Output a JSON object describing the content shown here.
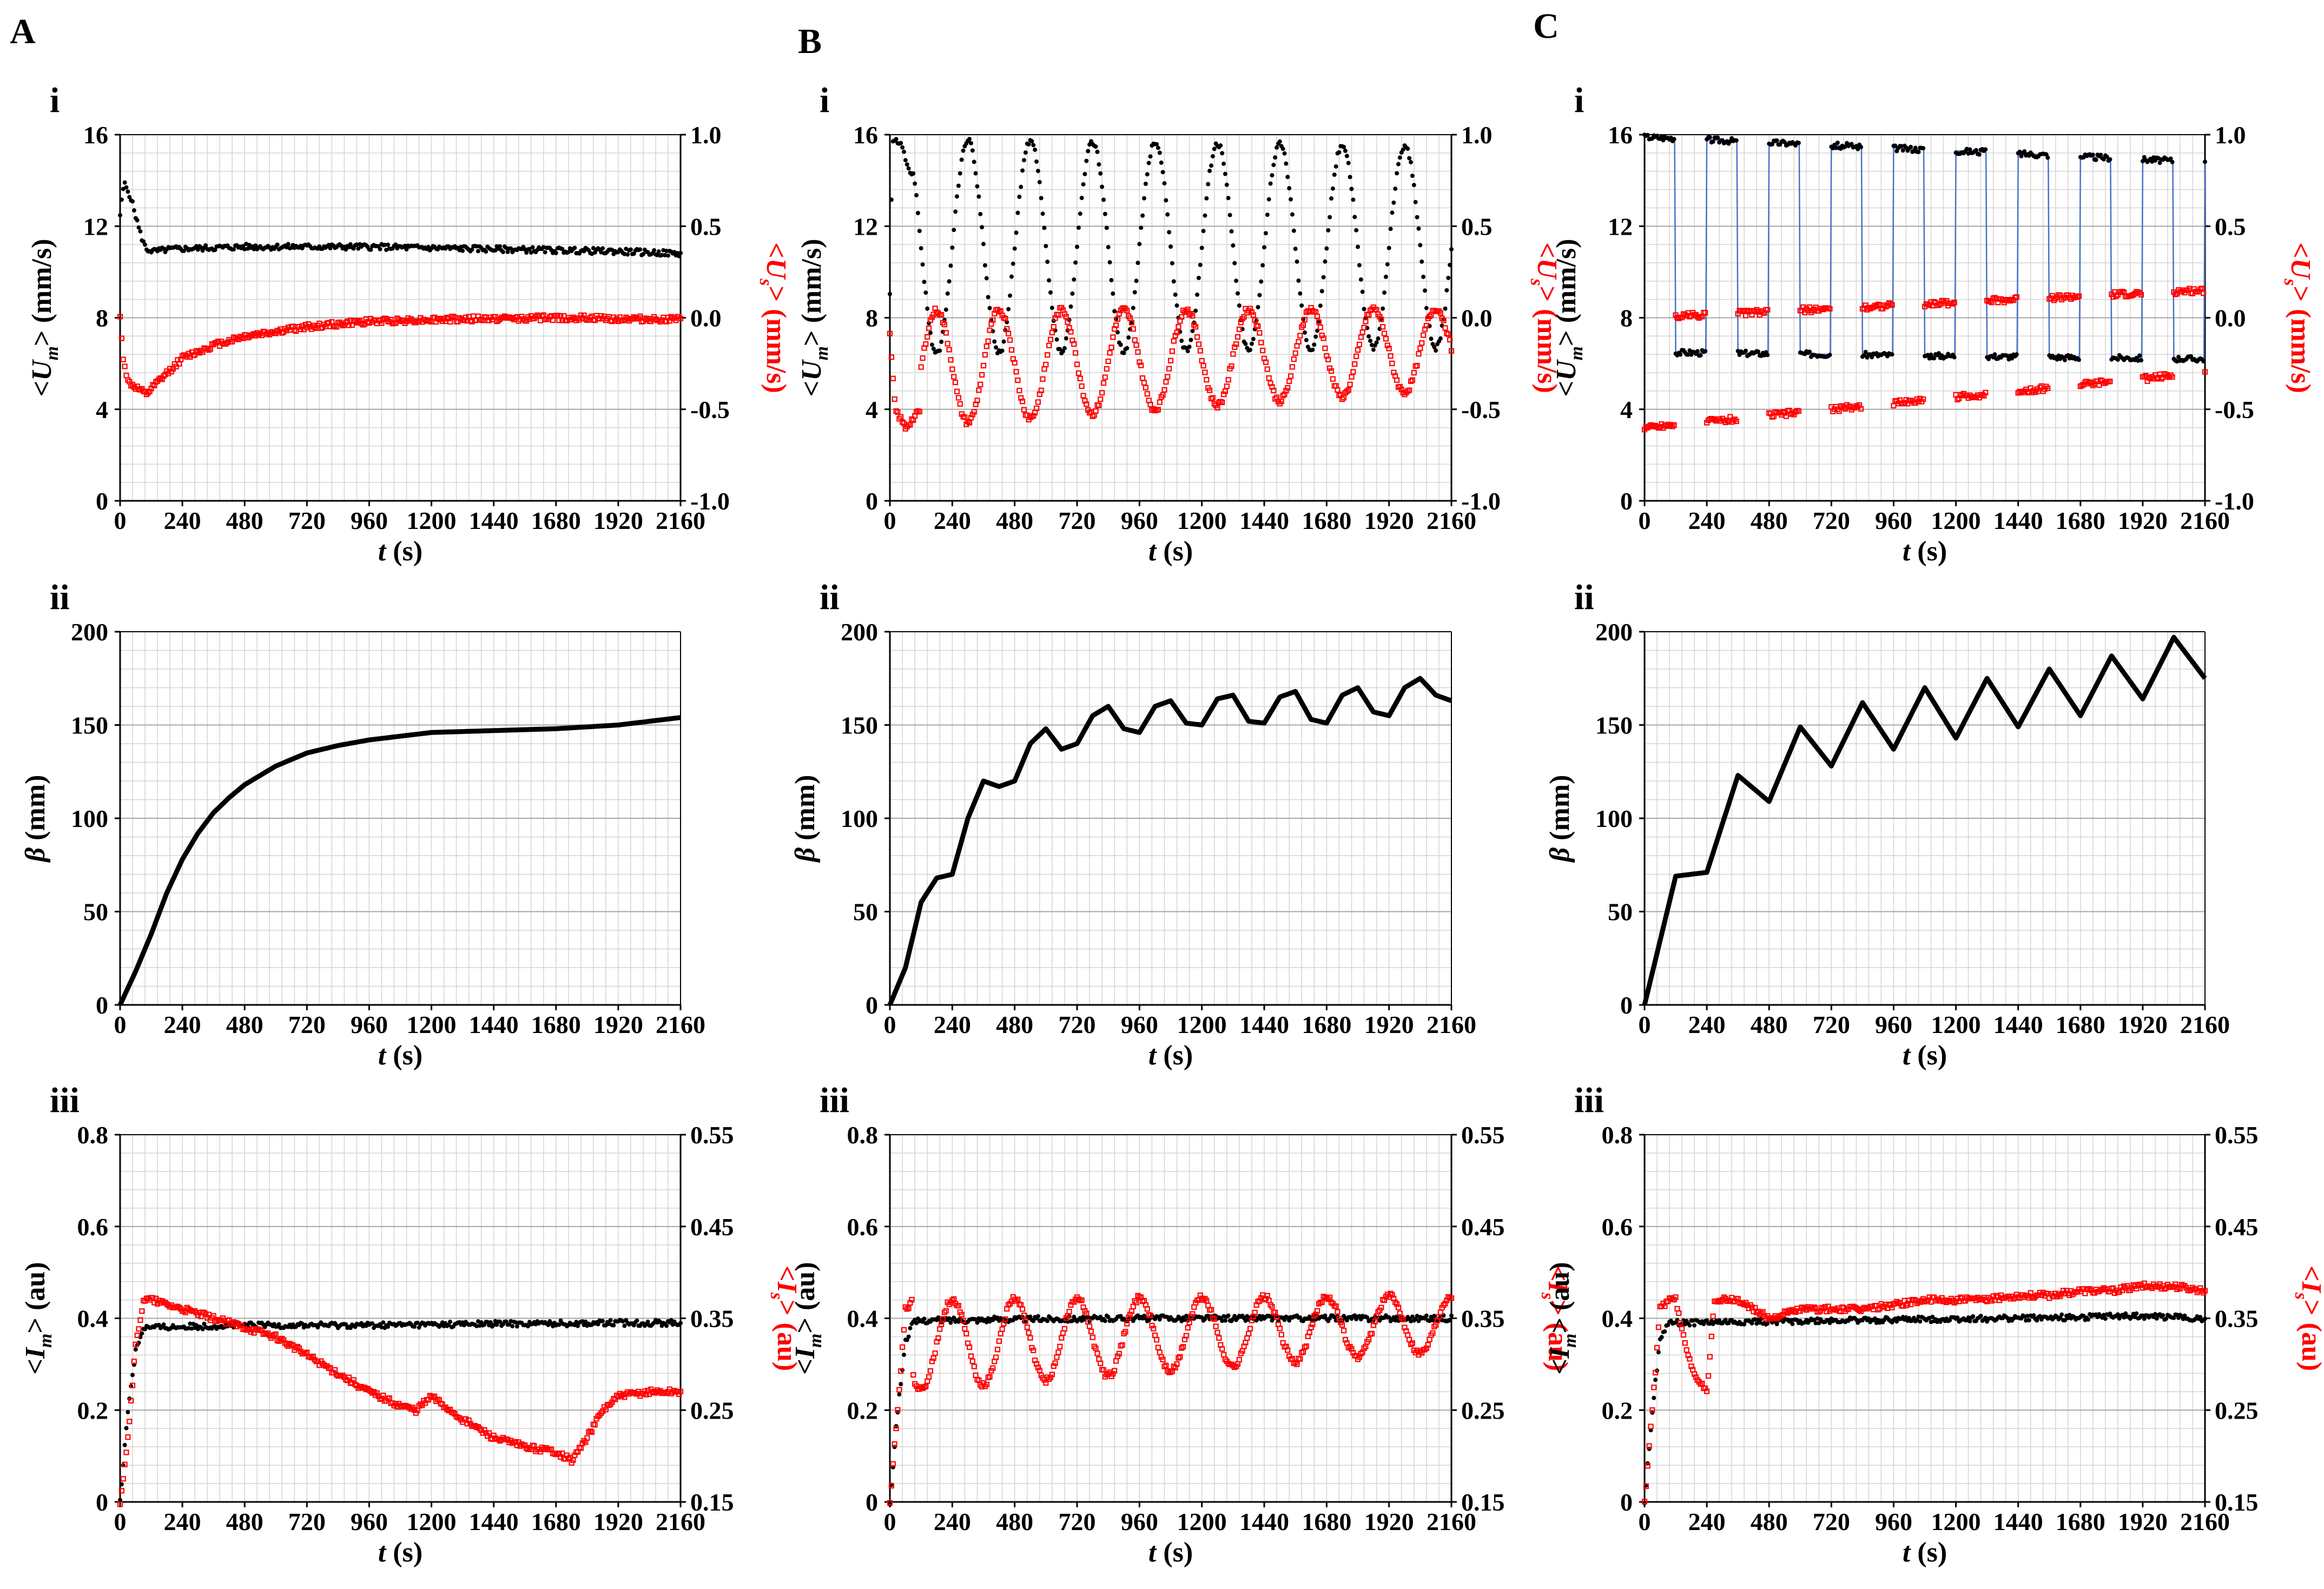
{
  "colors": {
    "black": "#000000",
    "red": "#ff0000",
    "blue": "#4472c4",
    "grid": "#d4d4d4",
    "grid_major": "#a6a6a6"
  },
  "columns": [
    {
      "label": "A",
      "rows": [
        "i",
        "ii",
        "iii"
      ]
    },
    {
      "label": "B",
      "rows": [
        "i",
        "ii",
        "iii"
      ]
    },
    {
      "label": "C",
      "rows": [
        "i",
        "ii",
        "iii"
      ]
    }
  ],
  "axis_text": {
    "x_label_main": "t",
    "x_label_unit": " (s)",
    "um": {
      "pre": "<U",
      "sub": "m",
      "post": "> (mm/s)"
    },
    "us": {
      "pre": "<U",
      "sub": "s",
      "post": "> (mm/s)"
    },
    "beta": {
      "main": "β",
      "unit": " (mm)"
    },
    "im": {
      "pre": "<I",
      "sub": "m",
      "post": "> (au)"
    },
    "is": {
      "pre": "<I",
      "sub": "s",
      "post": "> (au)"
    }
  },
  "chart_data": [
    {
      "panel": "A-i",
      "type": "scatter",
      "xlabel": "t (s)",
      "ylabel": "<Um> (mm/s)",
      "y2label": "<Us> (mm/s)",
      "xlim": [
        0,
        2160
      ],
      "ylim": [
        0,
        16
      ],
      "y2lim": [
        -1.0,
        1.0
      ],
      "xticks": [
        "0",
        "240",
        "480",
        "720",
        "960",
        "1200",
        "1440",
        "1680",
        "1920",
        "2160"
      ],
      "yticks": [
        "0",
        "4",
        "8",
        "12",
        "16"
      ],
      "y2ticks": [
        "-1.0",
        "-0.5",
        "0.0",
        "0.5",
        "1.0"
      ],
      "series": [
        {
          "name": "<Um>",
          "axis": "left",
          "color": "#000000",
          "mode": "constant",
          "x": [
            0,
            15,
            40,
            80,
            100,
            130,
            200,
            480,
            960,
            1440,
            1920,
            2160
          ],
          "y": [
            12.5,
            13.9,
            13.3,
            11.6,
            11.0,
            10.9,
            11.0,
            11.1,
            11.1,
            11.0,
            10.9,
            10.8
          ]
        },
        {
          "name": "<Us>",
          "axis": "right",
          "color": "#ff0000",
          "mode": "constant",
          "x": [
            0,
            10,
            30,
            60,
            100,
            140,
            240,
            360,
            480,
            720,
            960,
            1200,
            1680,
            2160
          ],
          "y": [
            0.0,
            -0.2,
            -0.35,
            -0.38,
            -0.42,
            -0.36,
            -0.22,
            -0.15,
            -0.1,
            -0.05,
            -0.02,
            -0.01,
            0.0,
            -0.01
          ]
        }
      ]
    },
    {
      "panel": "B-i",
      "type": "scatter",
      "xlabel": "t (s)",
      "ylabel": "<Um> (mm/s)",
      "y2label": "<Us> (mm/s)",
      "xlim": [
        0,
        2160
      ],
      "ylim": [
        0,
        16
      ],
      "y2lim": [
        -1.0,
        1.0
      ],
      "xticks": [
        "0",
        "240",
        "480",
        "720",
        "960",
        "1200",
        "1440",
        "1680",
        "1920",
        "2160"
      ],
      "yticks": [
        "0",
        "4",
        "8",
        "12",
        "16"
      ],
      "y2ticks": [
        "-1.0",
        "-0.5",
        "0.0",
        "0.5",
        "1.0"
      ],
      "series": [
        {
          "name": "<Um>",
          "axis": "left",
          "color": "#000000",
          "mode": "sine",
          "x": [
            0,
            10,
            40,
            90
          ],
          "y": [
            9,
            15.8,
            15.6,
            14
          ],
          "period": 240,
          "phase": 60,
          "mid": [
            11.1,
            11.1
          ],
          "amp": [
            4.7,
            4.4
          ],
          "start": 90
        },
        {
          "name": "<Us>",
          "axis": "right",
          "color": "#ff0000",
          "mode": "sine",
          "x": [
            0,
            20,
            60,
            120
          ],
          "y": [
            -0.1,
            -0.5,
            -0.6,
            -0.5
          ],
          "period": 240,
          "phase": 180,
          "mid": [
            -0.28,
            -0.17
          ],
          "amp": [
            0.32,
            0.22
          ],
          "start": 120
        }
      ]
    },
    {
      "panel": "C-i",
      "type": "scatter",
      "xlabel": "t (s)",
      "ylabel": "<Um> (mm/s)",
      "y2label": "<Us> (mm/s)",
      "xlim": [
        0,
        2160
      ],
      "ylim": [
        0,
        16
      ],
      "y2lim": [
        -1.0,
        1.0
      ],
      "xticks": [
        "0",
        "240",
        "480",
        "720",
        "960",
        "1200",
        "1440",
        "1680",
        "1920",
        "2160"
      ],
      "yticks": [
        "0",
        "4",
        "8",
        "12",
        "16"
      ],
      "y2ticks": [
        "-1.0",
        "-0.5",
        "0.0",
        "0.5",
        "1.0"
      ],
      "series": [
        {
          "name": "<Um>",
          "axis": "left",
          "color": "#000000",
          "mode": "square",
          "high": [
            15.9,
            14.8
          ],
          "low": [
            6.5,
            6.2
          ],
          "period": 240,
          "duty": 0.5,
          "start": 0
        },
        {
          "name": "<Us>",
          "axis": "right",
          "color": "#ff0000",
          "mode": "square",
          "high": [
            0.0,
            0.15
          ],
          "low": [
            -0.6,
            -0.3
          ],
          "period": 240,
          "duty": 0.5,
          "start": 0,
          "invert": true
        }
      ]
    },
    {
      "panel": "A-ii",
      "type": "line",
      "xlabel": "t (s)",
      "ylabel": "β (mm)",
      "xlim": [
        0,
        2160
      ],
      "ylim": [
        0,
        200
      ],
      "xticks": [
        "0",
        "240",
        "480",
        "720",
        "960",
        "1200",
        "1440",
        "1680",
        "1920",
        "2160"
      ],
      "yticks": [
        "0",
        "50",
        "100",
        "150",
        "200"
      ],
      "series": [
        {
          "name": "β",
          "color": "#000000",
          "x": [
            0,
            60,
            120,
            180,
            240,
            300,
            360,
            420,
            480,
            600,
            720,
            840,
            960,
            1080,
            1200,
            1440,
            1680,
            1920,
            2160
          ],
          "y": [
            0,
            18,
            38,
            60,
            78,
            92,
            103,
            111,
            118,
            128,
            135,
            139,
            142,
            144,
            146,
            147,
            148,
            150,
            154
          ]
        }
      ]
    },
    {
      "panel": "B-ii",
      "type": "line",
      "xlabel": "t (s)",
      "ylabel": "β (mm)",
      "xlim": [
        0,
        2160
      ],
      "ylim": [
        0,
        200
      ],
      "xticks": [
        "0",
        "240",
        "480",
        "720",
        "960",
        "1200",
        "1440",
        "1680",
        "1920",
        "2160"
      ],
      "yticks": [
        "0",
        "50",
        "100",
        "150",
        "200"
      ],
      "series": [
        {
          "name": "β",
          "color": "#000000",
          "x": [
            0,
            60,
            120,
            180,
            240,
            300,
            360,
            420,
            480,
            540,
            600,
            660,
            720,
            780,
            840,
            900,
            960,
            1020,
            1080,
            1140,
            1200,
            1260,
            1320,
            1380,
            1440,
            1500,
            1560,
            1620,
            1680,
            1740,
            1800,
            1860,
            1920,
            1980,
            2040,
            2100,
            2160
          ],
          "y": [
            0,
            20,
            55,
            68,
            70,
            100,
            120,
            117,
            120,
            140,
            148,
            137,
            140,
            155,
            160,
            148,
            146,
            160,
            163,
            151,
            150,
            164,
            166,
            152,
            151,
            165,
            168,
            153,
            151,
            166,
            170,
            157,
            155,
            170,
            175,
            166,
            163
          ]
        }
      ]
    },
    {
      "panel": "C-ii",
      "type": "line",
      "xlabel": "t (s)",
      "ylabel": "β (mm)",
      "xlim": [
        0,
        2160
      ],
      "ylim": [
        0,
        200
      ],
      "xticks": [
        "0",
        "240",
        "480",
        "720",
        "960",
        "1200",
        "1440",
        "1680",
        "1920",
        "2160"
      ],
      "yticks": [
        "0",
        "50",
        "100",
        "150",
        "200"
      ],
      "series": [
        {
          "name": "β",
          "color": "#000000",
          "x": [
            0,
            120,
            240,
            360,
            480,
            600,
            720,
            840,
            960,
            1080,
            1200,
            1320,
            1440,
            1560,
            1680,
            1800,
            1920,
            2040,
            2160
          ],
          "y": [
            0,
            69,
            71,
            123,
            109,
            149,
            128,
            162,
            137,
            170,
            143,
            175,
            149,
            180,
            155,
            187,
            164,
            197,
            175
          ]
        }
      ]
    },
    {
      "panel": "A-iii",
      "type": "scatter",
      "xlabel": "t (s)",
      "ylabel": "<Im> (au)",
      "y2label": "<Is> (au)",
      "xlim": [
        0,
        2160
      ],
      "ylim": [
        0,
        0.8
      ],
      "y2lim": [
        0.15,
        0.55
      ],
      "xticks": [
        "0",
        "240",
        "480",
        "720",
        "960",
        "1200",
        "1440",
        "1680",
        "1920",
        "2160"
      ],
      "yticks": [
        "0",
        "0.2",
        "0.4",
        "0.6",
        "0.8"
      ],
      "y2ticks": [
        "0.15",
        "0.25",
        "0.35",
        "0.45",
        "0.55"
      ],
      "series": [
        {
          "name": "<Im>",
          "axis": "left",
          "color": "#000000",
          "mode": "constant",
          "x": [
            0,
            30,
            60,
            90,
            120,
            480,
            960,
            1440,
            1920,
            2160
          ],
          "y": [
            0,
            0.2,
            0.33,
            0.38,
            0.38,
            0.385,
            0.385,
            0.388,
            0.39,
            0.39
          ]
        },
        {
          "name": "<Is>",
          "axis": "right",
          "color": "#ff0000",
          "mode": "constant",
          "x": [
            0,
            30,
            60,
            90,
            120,
            240,
            360,
            480,
            600,
            720,
            840,
            960,
            1080,
            1140,
            1200,
            1320,
            1440,
            1560,
            1680,
            1740,
            1800,
            1860,
            1920,
            2040,
            2160
          ],
          "y": [
            0.15,
            0.22,
            0.32,
            0.37,
            0.37,
            0.36,
            0.35,
            0.34,
            0.33,
            0.31,
            0.29,
            0.27,
            0.255,
            0.25,
            0.265,
            0.24,
            0.22,
            0.21,
            0.205,
            0.195,
            0.22,
            0.25,
            0.265,
            0.27,
            0.27
          ]
        }
      ]
    },
    {
      "panel": "B-iii",
      "type": "scatter",
      "xlabel": "t (s)",
      "ylabel": "<Im> (au)",
      "y2label": "<Is> (au)",
      "xlim": [
        0,
        2160
      ],
      "ylim": [
        0,
        0.8
      ],
      "y2lim": [
        0.15,
        0.55
      ],
      "xticks": [
        "0",
        "240",
        "480",
        "720",
        "960",
        "1200",
        "1440",
        "1680",
        "1920",
        "2160"
      ],
      "yticks": [
        "0",
        "0.2",
        "0.4",
        "0.6",
        "0.8"
      ],
      "y2ticks": [
        "0.15",
        "0.25",
        "0.35",
        "0.45",
        "0.55"
      ],
      "series": [
        {
          "name": "<Im>",
          "axis": "left",
          "color": "#000000",
          "mode": "constant",
          "x": [
            0,
            30,
            60,
            90,
            120,
            480,
            960,
            1440,
            1920,
            2160
          ],
          "y": [
            0,
            0.2,
            0.35,
            0.39,
            0.395,
            0.398,
            0.4,
            0.4,
            0.4,
            0.4
          ]
        },
        {
          "name": "<Is>",
          "axis": "right",
          "color": "#ff0000",
          "mode": "sine",
          "x": [
            0,
            30,
            60,
            90
          ],
          "y": [
            0.15,
            0.25,
            0.36,
            0.37
          ],
          "period": 240,
          "phase": 0,
          "mid": [
            0.32,
            0.345
          ],
          "amp": [
            0.05,
            0.03
          ],
          "start": 90
        }
      ]
    },
    {
      "panel": "C-iii",
      "type": "scatter",
      "xlabel": "t (s)",
      "ylabel": "<Im> (au)",
      "y2label": "<Is> (au)",
      "xlim": [
        0,
        2160
      ],
      "ylim": [
        0,
        0.8
      ],
      "y2lim": [
        0.15,
        0.55
      ],
      "xticks": [
        "0",
        "240",
        "480",
        "720",
        "960",
        "1200",
        "1440",
        "1680",
        "1920",
        "2160"
      ],
      "yticks": [
        "0",
        "0.2",
        "0.4",
        "0.6",
        "0.8"
      ],
      "y2ticks": [
        "0.15",
        "0.25",
        "0.35",
        "0.45",
        "0.55"
      ],
      "series": [
        {
          "name": "<Im>",
          "axis": "left",
          "color": "#000000",
          "mode": "constant",
          "x": [
            0,
            30,
            60,
            90,
            120,
            480,
            960,
            1440,
            1920,
            2160
          ],
          "y": [
            0,
            0.2,
            0.35,
            0.39,
            0.39,
            0.393,
            0.397,
            0.4,
            0.405,
            0.4
          ]
        },
        {
          "name": "<Is>",
          "axis": "right",
          "color": "#ff0000",
          "mode": "constant",
          "x": [
            0,
            30,
            60,
            90,
            120,
            150,
            180,
            210,
            240,
            270,
            360,
            480,
            600,
            720,
            840,
            960,
            1080,
            1200,
            1320,
            1440,
            1560,
            1680,
            1800,
            1920,
            2040,
            2160
          ],
          "y": [
            0.15,
            0.25,
            0.36,
            0.37,
            0.37,
            0.33,
            0.3,
            0.28,
            0.27,
            0.37,
            0.37,
            0.35,
            0.36,
            0.36,
            0.36,
            0.365,
            0.37,
            0.37,
            0.37,
            0.375,
            0.375,
            0.38,
            0.38,
            0.385,
            0.385,
            0.38
          ]
        }
      ]
    }
  ]
}
